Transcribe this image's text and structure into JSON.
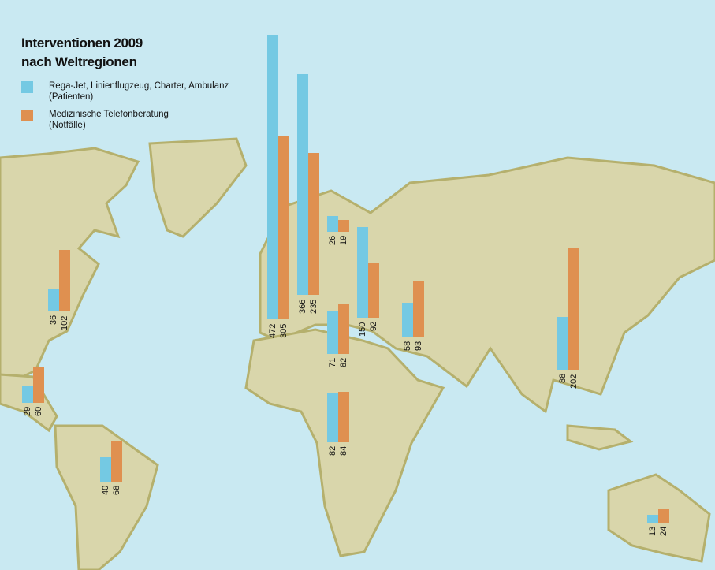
{
  "chart_data": {
    "type": "bar",
    "title": "Interventionen 2009",
    "subtitle": "nach Weltregionen",
    "legend": [
      {
        "name": "Rega-Jet, Linienflugzeug, Charter, Ambulanz",
        "note": "(Patienten)",
        "color": "#74c9e3"
      },
      {
        "name": "Medizinische Telefonberatung",
        "note": "(Notfälle)",
        "color": "#df9050"
      }
    ],
    "series": [
      {
        "name": "Rega-Jet, Linienflugzeug, Charter, Ambulanz",
        "values": [
          472,
          366,
          26,
          150,
          71,
          58,
          88,
          82,
          40,
          29,
          36,
          13
        ]
      },
      {
        "name": "Medizinische Telefonberatung",
        "values": [
          305,
          235,
          19,
          92,
          82,
          93,
          202,
          84,
          68,
          60,
          102,
          24
        ]
      }
    ],
    "background": "world map",
    "colors": {
      "water": "#c9e9f2",
      "land": "#d9d6ab",
      "coast": "#b5b06d"
    }
  }
}
